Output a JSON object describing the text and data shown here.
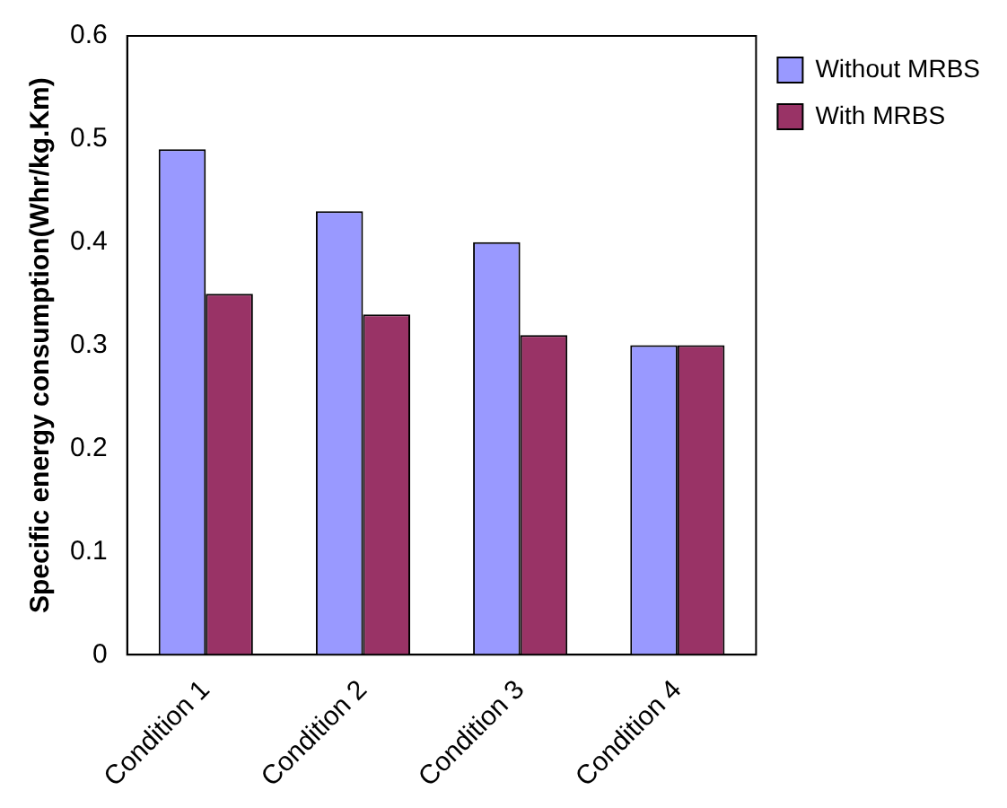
{
  "chart_data": {
    "type": "bar",
    "ylabel": "Specific energy consumption(Whr/kg.Km)",
    "categories": [
      "Condition 1",
      "Condition 2",
      "Condition 3",
      "Condition 4"
    ],
    "series": [
      {
        "name": "Without MRBS",
        "color": "#9999ff",
        "values": [
          0.49,
          0.43,
          0.4,
          0.3
        ]
      },
      {
        "name": "With MRBS",
        "color": "#993366",
        "values": [
          0.35,
          0.33,
          0.31,
          0.3
        ]
      }
    ],
    "ylim": [
      0,
      0.6
    ],
    "yticks": [
      0,
      0.1,
      0.2,
      0.3,
      0.4,
      0.5,
      0.6
    ],
    "grid": false,
    "legend": "top right"
  }
}
